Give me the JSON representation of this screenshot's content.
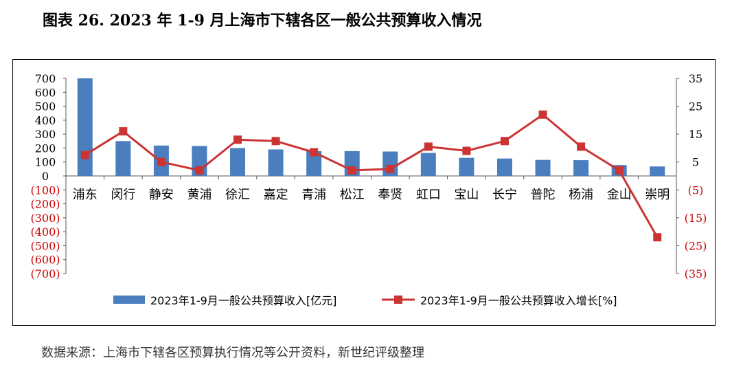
{
  "title": "图表 26. 2023 年 1-9 月上海市下辖各区一般公共预算收入情况",
  "source": "数据来源：上海市下辖各区预算执行情况等公开资料，新世纪评级整理",
  "colors": {
    "bar": "#4a7ebf",
    "line": "#cc3333",
    "negative_tick": "#cc0000"
  },
  "chart_data": {
    "type": "bar",
    "categories": [
      "浦东",
      "闵行",
      "静安",
      "黄浦",
      "徐汇",
      "嘉定",
      "青浦",
      "松江",
      "奉贤",
      "虹口",
      "宝山",
      "长宁",
      "普陀",
      "杨浦",
      "金山",
      "崇明"
    ],
    "series": [
      {
        "name": "2023年1-9月一般公共预算收入[亿元]",
        "type": "bar",
        "axis": "left",
        "values": [
          700,
          250,
          218,
          215,
          200,
          190,
          178,
          178,
          175,
          165,
          130,
          125,
          115,
          113,
          78,
          68
        ]
      },
      {
        "name": "2023年1-9月一般公共预算收入增长[%]",
        "type": "line",
        "axis": "right",
        "values": [
          7.5,
          16,
          5,
          2,
          13,
          12.5,
          8.5,
          2,
          2.5,
          10.5,
          9,
          12.5,
          22,
          10.5,
          2,
          -22
        ]
      }
    ],
    "y_left": {
      "ylim": [
        -700,
        700
      ],
      "ticks": [
        "700",
        "600",
        "500",
        "400",
        "300",
        "200",
        "100",
        "0",
        "(100)",
        "(200)",
        "(300)",
        "(400)",
        "(500)",
        "(600)",
        "(700)"
      ]
    },
    "y_right": {
      "ylim": [
        -35,
        35
      ],
      "ticks": [
        "35",
        "25",
        "15",
        "5",
        "(5)",
        "(15)",
        "(25)",
        "(35)"
      ]
    },
    "grid": false,
    "legend_placement": "bottom"
  }
}
